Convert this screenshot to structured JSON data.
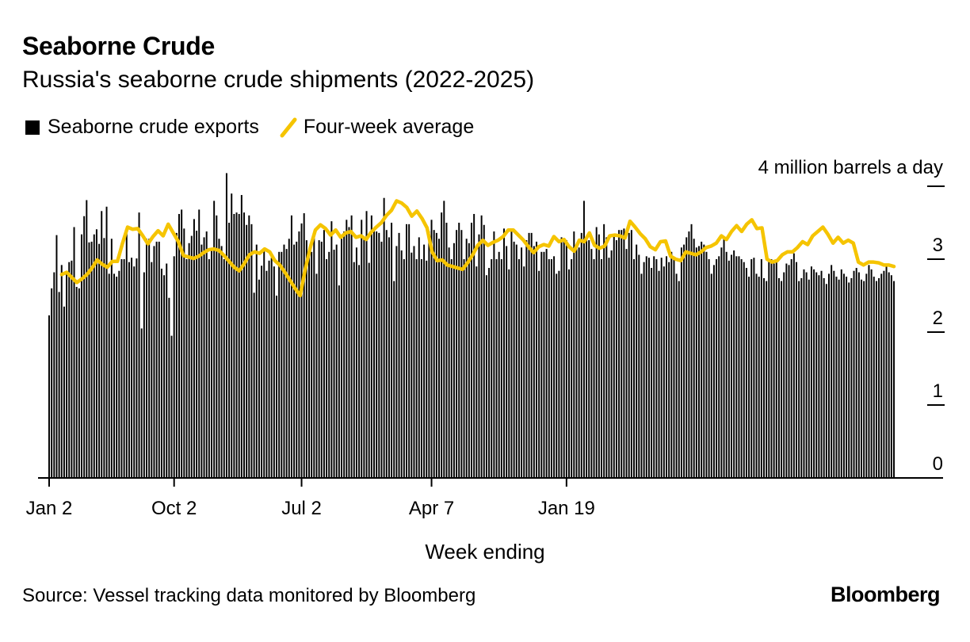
{
  "title": "Seaborne Crude",
  "subtitle": "Russia's seaborne crude shipments (2022-2025)",
  "legend": {
    "bars_label": "Seaborne crude exports",
    "line_label": "Four-week average"
  },
  "source": "Source: Vessel tracking data monitored by Bloomberg",
  "brand": "Bloomberg",
  "colors": {
    "bars": "#000000",
    "line": "#f5c400",
    "axis": "#000000"
  },
  "chart_data": {
    "type": "bar",
    "title": "Seaborne Crude",
    "subtitle": "Russia's seaborne crude shipments (2022-2025)",
    "xlabel": "Week ending",
    "ylabel": "4 million barrels a day",
    "ylim": [
      0,
      4
    ],
    "y_ticks": [
      0,
      1,
      2,
      3
    ],
    "y_tick_labels": [
      "0",
      "1",
      "2",
      "3"
    ],
    "y_top_label": "4 million barrels a day",
    "x_tick_index": [
      0,
      50,
      101,
      153,
      207
    ],
    "x_tick_labels": [
      "Jan 2",
      "Oct 2",
      "Jul 2",
      "Apr 7",
      "Jan 19"
    ],
    "series": [
      {
        "name": "Seaborne crude exports",
        "type": "bar",
        "values": [
          2.23,
          2.6,
          2.82,
          3.33,
          2.55,
          2.92,
          2.35,
          2.8,
          2.96,
          2.98,
          3.44,
          2.62,
          2.6,
          3.34,
          3.59,
          3.81,
          3.23,
          3.24,
          3.34,
          3.41,
          3.21,
          3.66,
          3.29,
          3.72,
          2.8,
          3.28,
          2.8,
          2.76,
          2.84,
          3.0,
          3.0,
          3.4,
          2.96,
          3.02,
          2.9,
          3.01,
          3.64,
          2.05,
          2.82,
          3.28,
          3.28,
          2.96,
          3.18,
          3.24,
          3.24,
          2.87,
          2.78,
          2.94,
          2.47,
          1.95,
          3.04,
          3.36,
          3.62,
          3.68,
          3.42,
          3.0,
          3.22,
          3.32,
          3.55,
          3.39,
          3.68,
          3.2,
          3.3,
          3.38,
          3.0,
          3.12,
          3.8,
          3.6,
          3.28,
          3.18,
          3.0,
          4.18,
          3.5,
          3.9,
          3.62,
          3.64,
          3.62,
          3.88,
          3.64,
          3.47,
          3.6,
          3.48,
          2.54,
          3.2,
          2.72,
          2.91,
          3.14,
          2.84,
          2.98,
          3.02,
          2.9,
          2.5,
          3.1,
          3.1,
          3.2,
          3.14,
          3.28,
          3.6,
          3.2,
          3.24,
          3.38,
          3.49,
          3.63,
          3.26,
          3.04,
          3.1,
          3.29,
          2.8,
          3.26,
          3.24,
          3.4,
          3.0,
          3.1,
          3.52,
          3.13,
          3.2,
          2.64,
          3.28,
          3.38,
          3.54,
          3.44,
          3.6,
          2.96,
          3.16,
          2.92,
          3.54,
          3.3,
          3.66,
          2.95,
          3.6,
          3.4,
          3.38,
          3.36,
          3.24,
          3.84,
          3.4,
          3.3,
          3.5,
          2.7,
          3.18,
          3.36,
          3.12,
          3.0,
          3.48,
          3.48,
          3.09,
          3.18,
          3.0,
          3.3,
          3.0,
          3.2,
          2.98,
          3.38,
          3.54,
          3.4,
          3.36,
          3.28,
          3.64,
          3.8,
          3.5,
          3.16,
          3.0,
          3.22,
          3.4,
          3.5,
          3.4,
          3.0,
          3.28,
          3.22,
          3.5,
          3.62,
          2.9,
          3.34,
          3.6,
          3.47,
          2.78,
          2.88,
          3.0,
          3.38,
          3.0,
          3.1,
          3.0,
          3.42,
          3.18,
          2.86,
          3.38,
          3.24,
          3.2,
          3.0,
          3.16,
          2.9,
          3.26,
          3.36,
          3.36,
          3.18,
          3.24,
          2.84,
          3.1,
          3.1,
          3.14,
          3.0,
          3.0,
          3.04,
          2.8,
          2.84,
          3.3,
          3.26,
          3.26,
          2.86,
          3.0,
          3.38,
          3.2,
          3.16,
          3.36,
          3.8,
          3.3,
          3.26,
          3.14,
          3.0,
          3.44,
          3.34,
          3.0,
          3.48,
          3.3,
          3.02,
          3.12,
          3.32,
          3.26,
          3.4,
          3.4,
          3.42,
          3.14,
          3.36,
          3.4,
          3.0,
          3.2,
          3.06,
          2.8,
          2.96,
          3.04,
          3.02,
          2.88,
          3.04,
          3.0,
          2.84,
          3.02,
          2.9,
          3.04,
          2.96,
          3.1,
          3.02,
          2.8,
          2.7,
          3.16,
          3.2,
          3.3,
          3.38,
          3.48,
          3.28,
          3.16,
          3.18,
          3.24,
          3.2,
          3.1,
          3.0,
          2.8,
          2.92,
          3.0,
          3.04,
          3.16,
          3.28,
          3.1,
          2.98,
          3.06,
          3.12,
          3.04,
          3.04,
          3.0,
          2.96,
          2.88,
          2.76,
          3.0,
          3.02,
          2.8,
          2.76,
          3.0,
          2.74,
          2.7,
          3.0,
          3.0,
          2.94,
          2.96,
          2.74,
          2.7,
          2.82,
          2.94,
          2.92,
          3.0,
          3.08,
          2.96,
          2.7,
          2.74,
          2.86,
          2.82,
          2.72,
          2.9,
          2.86,
          2.82,
          2.78,
          2.84,
          2.74,
          2.66,
          2.8,
          2.92,
          2.84,
          2.76,
          2.72,
          2.86,
          2.8,
          2.76,
          2.68,
          2.74,
          2.84,
          2.88,
          2.82,
          2.72,
          2.7,
          2.8,
          2.92,
          2.86,
          2.76,
          2.7,
          2.74,
          2.8,
          2.84,
          2.9,
          2.82,
          2.78,
          2.7
        ]
      },
      {
        "name": "Four-week average",
        "type": "line",
        "start_index": 5,
        "values": [
          2.79,
          2.82,
          2.75,
          2.68,
          2.73,
          2.79,
          2.88,
          2.99,
          2.93,
          2.89,
          2.97,
          2.97,
          3.22,
          3.44,
          3.41,
          3.42,
          3.32,
          3.21,
          3.31,
          3.39,
          3.32,
          3.48,
          3.36,
          3.24,
          3.05,
          3.03,
          3.01,
          3.04,
          3.09,
          3.13,
          3.14,
          3.12,
          3.05,
          2.97,
          2.89,
          2.84,
          2.94,
          3.06,
          3.1,
          3.08,
          3.14,
          3.1,
          2.98,
          2.92,
          2.82,
          2.71,
          2.6,
          2.5,
          2.86,
          3.16,
          3.4,
          3.47,
          3.42,
          3.33,
          3.4,
          3.3,
          3.36,
          3.38,
          3.3,
          3.32,
          3.27,
          3.37,
          3.44,
          3.5,
          3.6,
          3.67,
          3.8,
          3.77,
          3.71,
          3.59,
          3.66,
          3.56,
          3.43,
          3.1,
          2.98,
          2.99,
          2.92,
          2.9,
          2.88,
          2.86,
          2.95,
          3.06,
          3.19,
          3.26,
          3.19,
          3.23,
          3.26,
          3.31,
          3.4,
          3.4,
          3.33,
          3.26,
          3.17,
          3.09,
          3.17,
          3.2,
          3.18,
          3.31,
          3.24,
          3.27,
          3.17,
          3.11,
          3.26,
          3.24,
          3.36,
          3.19,
          3.15,
          3.18,
          3.32,
          3.33,
          3.32,
          3.29,
          3.52,
          3.44,
          3.35,
          3.28,
          3.17,
          3.13,
          3.24,
          3.25,
          3.04,
          3.0,
          2.98,
          3.1,
          3.08,
          3.06,
          3.1,
          3.16,
          3.18,
          3.22,
          3.32,
          3.27,
          3.38,
          3.46,
          3.38,
          3.48,
          3.54,
          3.42,
          3.43,
          3.0,
          2.96,
          2.98,
          3.06,
          3.1,
          3.1,
          3.16,
          3.24,
          3.2,
          3.32,
          3.38,
          3.44,
          3.34,
          3.22,
          3.3,
          3.22,
          3.26,
          3.22,
          2.96,
          2.92,
          2.96,
          2.96,
          2.95,
          2.92,
          2.92,
          2.9
        ]
      }
    ]
  }
}
